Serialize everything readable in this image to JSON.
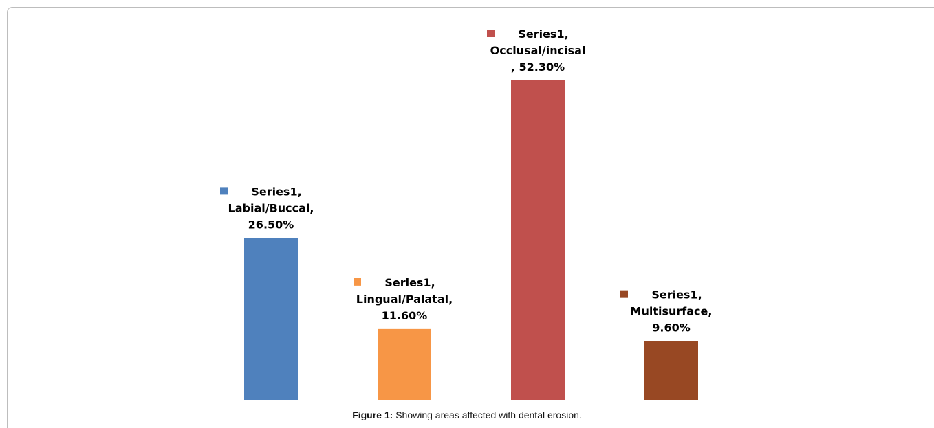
{
  "chart_data": {
    "type": "bar",
    "series_name": "Series1",
    "categories": [
      "Labial/Buccal",
      "Lingual/Palatal",
      "Occlusal/incisal",
      "Multisurface"
    ],
    "values": [
      26.5,
      11.6,
      52.3,
      9.6
    ],
    "colors": [
      "#4f81bd",
      "#f79646",
      "#c0504d",
      "#984823"
    ],
    "data_labels": [
      [
        "Series1,",
        "Labial/Buccal,",
        "26.50%"
      ],
      [
        "Series1,",
        "Lingual/Palatal,",
        "11.60%"
      ],
      [
        "Series1,",
        "Occlusal/incisal",
        ", 52.30%"
      ],
      [
        "Series1,",
        "Multisurface,",
        "9.60%"
      ]
    ],
    "title": "",
    "xlabel": "",
    "ylabel": "",
    "ylim": [
      0,
      52.3
    ],
    "grid": false,
    "legend": "none"
  },
  "caption": {
    "label": "Figure 1:",
    "text": " Showing areas affected with dental erosion."
  }
}
